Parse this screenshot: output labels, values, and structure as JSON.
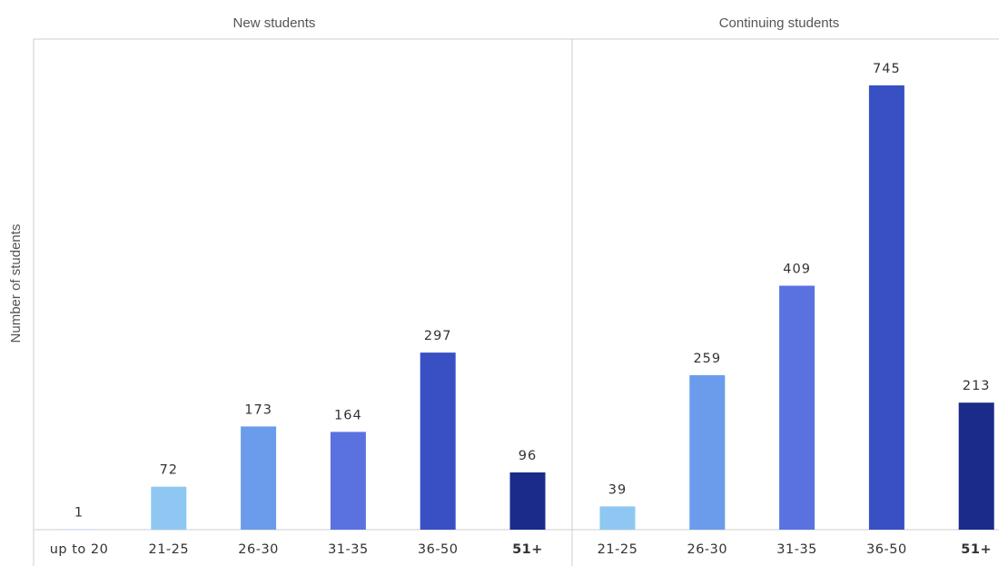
{
  "chart_data": {
    "type": "bar",
    "ylabel": "Number of students",
    "ylim": [
      0,
      800
    ],
    "grid": false,
    "legend": "none",
    "panels": [
      {
        "title": "New students",
        "categories": [
          "up to 20",
          "21-25",
          "26-30",
          "31-35",
          "36-50",
          "51+"
        ],
        "values": [
          1,
          72,
          173,
          164,
          297,
          96
        ],
        "colors": [
          "#c8dcf5",
          "#8ec8f2",
          "#6a9ceb",
          "#5a72e0",
          "#3850c4",
          "#1a2b8a"
        ]
      },
      {
        "title": "Continuing students",
        "categories": [
          "21-25",
          "26-30",
          "31-35",
          "36-50",
          "51+"
        ],
        "values": [
          39,
          259,
          409,
          745,
          213
        ],
        "colors": [
          "#8ec8f2",
          "#6a9ceb",
          "#5a72e0",
          "#3850c4",
          "#1a2b8a"
        ]
      }
    ]
  }
}
